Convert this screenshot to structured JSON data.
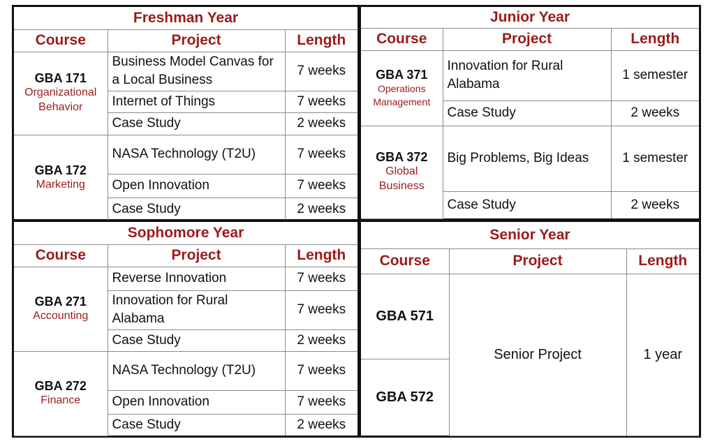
{
  "freshman": {
    "title": "Freshman Year",
    "headers": {
      "course": "Course",
      "project": "Project",
      "length": "Length"
    },
    "courses": [
      {
        "code": "GBA 171",
        "name": "Organizational Behavior",
        "projects": [
          {
            "project": "Business Model Canvas for a Local Business",
            "length": "7 weeks"
          },
          {
            "project": "Internet of Things",
            "length": "7 weeks"
          },
          {
            "project": "Case Study",
            "length": "2 weeks"
          }
        ]
      },
      {
        "code": "GBA 172",
        "name": "Marketing",
        "projects": [
          {
            "project": "NASA Technology (T2U)",
            "length": "7 weeks"
          },
          {
            "project": "Open Innovation",
            "length": "7 weeks"
          },
          {
            "project": "Case Study",
            "length": "2 weeks"
          }
        ]
      }
    ]
  },
  "junior": {
    "title": "Junior Year",
    "headers": {
      "course": "Course",
      "project": "Project",
      "length": "Length"
    },
    "courses": [
      {
        "code": "GBA 371",
        "name": "Operations Management",
        "projects": [
          {
            "project": "Innovation for Rural Alabama",
            "length": "1 semester"
          },
          {
            "project": "Case Study",
            "length": "2 weeks"
          }
        ]
      },
      {
        "code": "GBA 372",
        "name": "Global Business",
        "projects": [
          {
            "project": "Big Problems, Big Ideas",
            "length": "1 semester"
          },
          {
            "project": "Case Study",
            "length": "2 weeks"
          }
        ]
      }
    ]
  },
  "sophomore": {
    "title": "Sophomore Year",
    "headers": {
      "course": "Course",
      "project": "Project",
      "length": "Length"
    },
    "courses": [
      {
        "code": "GBA 271",
        "name": "Accounting",
        "projects": [
          {
            "project": "Reverse Innovation",
            "length": "7 weeks"
          },
          {
            "project": "Innovation for Rural Alabama",
            "length": "7 weeks"
          },
          {
            "project": "Case Study",
            "length": "2 weeks"
          }
        ]
      },
      {
        "code": "GBA 272",
        "name": "Finance",
        "projects": [
          {
            "project": "NASA Technology (T2U)",
            "length": "7 weeks"
          },
          {
            "project": "Open Innovation",
            "length": "7 weeks"
          },
          {
            "project": "Case Study",
            "length": "2 weeks"
          }
        ]
      }
    ]
  },
  "senior": {
    "title": "Senior Year",
    "headers": {
      "course": "Course",
      "project": "Project",
      "length": "Length"
    },
    "courses": [
      "GBA 571",
      "GBA 572"
    ],
    "project": "Senior Project",
    "length": "1 year"
  },
  "colors": {
    "accent": "#9b1b1b",
    "text": "#111111",
    "border": "#8a8a8a"
  }
}
